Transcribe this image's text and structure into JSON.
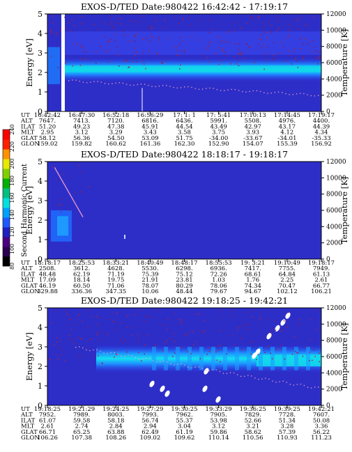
{
  "colorbar": {
    "label": "Second Harmonic Current",
    "ticks": [
      "80",
      "100",
      "120",
      "140",
      "160",
      "180",
      "200",
      "220",
      "240"
    ],
    "colors": [
      "#000000",
      "#2b0050",
      "#4b0082",
      "#2020c0",
      "#1e5aff",
      "#00a0ff",
      "#00e0e0",
      "#00c080",
      "#00b000",
      "#80d000",
      "#e8e800",
      "#ff9000",
      "#ff2000",
      "#ff0000"
    ]
  },
  "chart_data": [
    {
      "type": "heatmap",
      "title": "EXOS-D/TED   Date:980422   16:42:42 - 17:19:17",
      "ylabel": "Energy [eV]",
      "ylabel_right": "Temperature [K]",
      "yticks": [
        "0",
        "1",
        "2",
        "3",
        "4",
        "5"
      ],
      "yticks_right": [
        "0",
        "2000",
        "4000",
        "6000",
        "8000",
        "10000",
        "12000"
      ],
      "ylim": [
        0,
        5
      ],
      "ylim_right": [
        0,
        12000
      ],
      "row_labels": [
        "UT",
        "ALT",
        "ILAT",
        "MLT",
        "GLAT",
        "GLON"
      ],
      "columns": [
        [
          "16:42:42",
          "7647.",
          "51.20",
          "2.95",
          "58.12",
          "159.02"
        ],
        [
          "16:47:30",
          "7413.",
          "49.23",
          "3.12",
          "56.36",
          "159.82"
        ],
        [
          "16:52:18",
          "7120.",
          "47.38",
          "3.29",
          "54.50",
          "160.62"
        ],
        [
          "16:56:29",
          "6816.",
          "45.91",
          "3.43",
          "53.09",
          "161.36"
        ],
        [
          "17: 1: 1",
          "6436.",
          "44.54",
          "3.58",
          "51.75",
          "162.30"
        ],
        [
          "17: 5:41",
          "5991.",
          "43.49",
          "3.75",
          "-34.00",
          "152.90"
        ],
        [
          "17:10:13",
          "5508.",
          "42.97",
          "3.93",
          "-33.67",
          "154.07"
        ],
        [
          "17:14:45",
          "4976.",
          "43.17",
          "4.12",
          "-34.01",
          "155.39"
        ],
        [
          "17:19:17",
          "4400.",
          "44.39",
          "4.34",
          "-35.33",
          "156.92"
        ]
      ]
    },
    {
      "type": "heatmap",
      "title": "EXOS-D/TED   Date:980422   18:18:17 - 19:18:17",
      "ylabel": "Energy [eV]",
      "ylabel_right": "Temperature [K]",
      "yticks": [
        "0",
        "1",
        "2",
        "3",
        "4",
        "5"
      ],
      "yticks_right": [
        "0",
        "2000",
        "4000",
        "6000",
        "8000",
        "10000",
        "12000"
      ],
      "ylim": [
        0,
        5
      ],
      "ylim_right": [
        0,
        12000
      ],
      "row_labels": [
        "UT",
        "ALT",
        "ILAT",
        "MLT",
        "GLAT",
        "GLON"
      ],
      "columns": [
        [
          "18:18:17",
          "2508.",
          "48.48",
          "17.09",
          "46.19",
          "329.88"
        ],
        [
          "18:25:53",
          "3612.",
          "62.19",
          "18.14",
          "60.50",
          "336.36"
        ],
        [
          "18:33:21",
          "4628.",
          "71.19",
          "19.75",
          "71.06",
          "347.35"
        ],
        [
          "18:40:49",
          "5530.",
          "75.39",
          "21.91",
          "78.07",
          "10.06"
        ],
        [
          "18:48:17",
          "6298.",
          "75.12",
          "23.81",
          "80.29",
          "48.44"
        ],
        [
          "18:55:53",
          "6936.",
          "72.26",
          "1.03",
          "78.06",
          "79.67"
        ],
        [
          "19: 3:21",
          "7417.",
          "68.61",
          "1.76",
          "74.34",
          "94.67"
        ],
        [
          "19:10:49",
          "7755.",
          "64.84",
          "2.25",
          "70.47",
          "102.12"
        ],
        [
          "19:18:17",
          "7949.",
          "61.13",
          "2.61",
          "66.77",
          "106.21"
        ]
      ]
    },
    {
      "type": "heatmap",
      "title": "EXOS-D/TED   Date:980422   19:18:25 - 19:42:21",
      "ylabel": "Energy [eV]",
      "ylabel_right": "Temperature [K]",
      "yticks": [
        "0",
        "1",
        "2",
        "3",
        "4",
        "5"
      ],
      "yticks_right": [
        "0",
        "2000",
        "4000",
        "6000",
        "8000",
        "10000",
        "12000"
      ],
      "ylim": [
        0,
        5
      ],
      "ylim_right": [
        0,
        12000
      ],
      "row_labels": [
        "UT",
        "ALT",
        "ILAT",
        "MLT",
        "GLAT",
        "GLON"
      ],
      "columns": [
        [
          "19:18:25",
          "7952.",
          "61.07",
          "2.61",
          "66.71",
          "106.26"
        ],
        [
          "19:21:29",
          "7989.",
          "59.58",
          "2.74",
          "65.25",
          "107.38"
        ],
        [
          "19:24:25",
          "8003.",
          "58.18",
          "2.84",
          "63.88",
          "108.26"
        ],
        [
          "19:27:29",
          "7993.",
          "56.74",
          "2.94",
          "62.49",
          "109.02"
        ],
        [
          "19:30:25",
          "7962.",
          "55.37",
          "3.04",
          "61.19",
          "109.62"
        ],
        [
          "19:33:29",
          "7905.",
          "53.98",
          "3.12",
          "59.86",
          "110.14"
        ],
        [
          "19:36:25",
          "7829.",
          "52.66",
          "3.21",
          "58.62",
          "110.56"
        ],
        [
          "19:39:25",
          "7728.",
          "51.34",
          "3.28",
          "57.39",
          "110.93"
        ],
        [
          "19:42:21",
          "7607.",
          "50.08",
          "3.36",
          "56.22",
          "111.23"
        ]
      ]
    }
  ]
}
